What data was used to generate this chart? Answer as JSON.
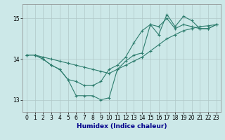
{
  "xlabel": "Humidex (Indice chaleur)",
  "background_color": "#cce8e8",
  "grid_color": "#b0c8c8",
  "line_color": "#2e7d6e",
  "xlim": [
    -0.5,
    23.5
  ],
  "ylim": [
    12.7,
    15.35
  ],
  "yticks": [
    13,
    14,
    15
  ],
  "xticks": [
    0,
    1,
    2,
    3,
    4,
    5,
    6,
    7,
    8,
    9,
    10,
    11,
    12,
    13,
    14,
    15,
    16,
    17,
    18,
    19,
    20,
    21,
    22,
    23
  ],
  "x": [
    0,
    1,
    2,
    3,
    4,
    5,
    6,
    7,
    8,
    9,
    10,
    11,
    12,
    13,
    14,
    15,
    16,
    17,
    18,
    19,
    20,
    21,
    22,
    23
  ],
  "line1": [
    14.1,
    14.1,
    14.0,
    13.85,
    13.75,
    13.5,
    13.1,
    13.1,
    13.1,
    13.0,
    13.05,
    13.75,
    13.95,
    14.1,
    14.15,
    14.85,
    14.6,
    15.1,
    14.8,
    15.05,
    14.95,
    14.75,
    14.75,
    14.85
  ],
  "line2": [
    14.1,
    14.1,
    14.0,
    13.85,
    13.75,
    13.5,
    13.45,
    13.35,
    13.35,
    13.45,
    13.75,
    13.85,
    14.05,
    14.4,
    14.7,
    14.85,
    14.8,
    15.0,
    14.75,
    14.85,
    14.8,
    14.75,
    14.75,
    14.85
  ],
  "line3": [
    14.1,
    14.1,
    14.05,
    14.0,
    13.95,
    13.9,
    13.85,
    13.8,
    13.75,
    13.7,
    13.65,
    13.75,
    13.85,
    13.95,
    14.05,
    14.2,
    14.35,
    14.5,
    14.6,
    14.7,
    14.75,
    14.8,
    14.82,
    14.85
  ],
  "xlabel_color": "#00008b",
  "xlabel_fontsize": 6.5,
  "tick_fontsize": 5.5
}
